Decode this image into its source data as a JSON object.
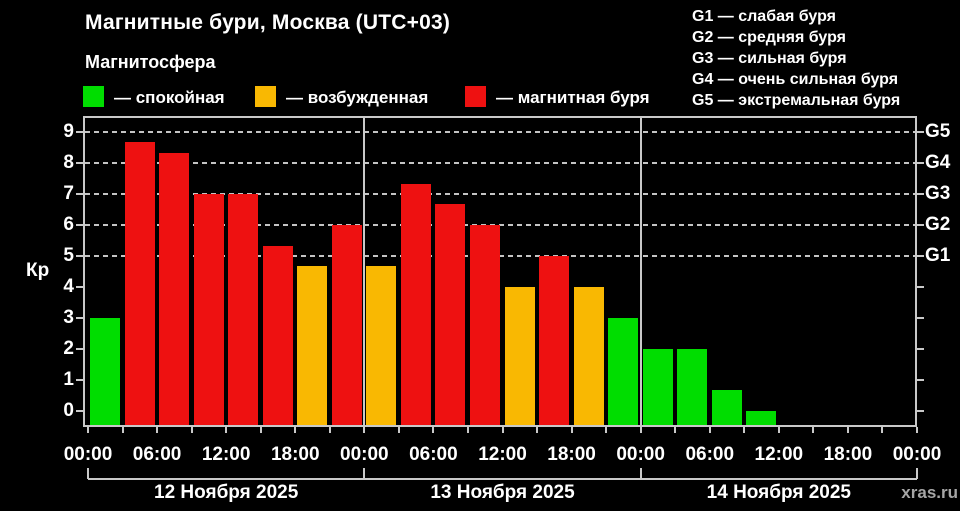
{
  "header": {
    "title": "Магнитные бури, Москва (UTC+03)",
    "subtitle": "Магнитосфера"
  },
  "legend": {
    "items": [
      {
        "key": "quiet",
        "label": "— спокойная",
        "color": "#00dd00"
      },
      {
        "key": "excited",
        "label": "— возбужденная",
        "color": "#f9b802"
      },
      {
        "key": "storm",
        "label": "— магнитная буря",
        "color": "#ee1111"
      }
    ]
  },
  "g_scale_legend": {
    "items": [
      "G1 — слабая буря",
      "G2 — средняя буря",
      "G3 — сильная буря",
      "G4 — очень сильная буря",
      "G5 — экстремальная буря"
    ]
  },
  "watermark": "xras.ru",
  "colors": {
    "quiet": "#00dd00",
    "excited": "#f9b802",
    "storm": "#ee1111",
    "axis": "#c9c9c9",
    "text": "#ffffff",
    "background": "#000000"
  },
  "chart_data": {
    "type": "bar",
    "title": "Магнитные бури, Москва (UTC+03)",
    "subtitle": "Магнитосфера",
    "ylabel": "Кр",
    "ylim": [
      -0.45,
      9.45
    ],
    "yticks": [
      0,
      1,
      2,
      3,
      4,
      5,
      6,
      7,
      8,
      9
    ],
    "gridlines_at": [
      5,
      6,
      7,
      8,
      9
    ],
    "grid": "dashed horizontal at Kp 5-9 only",
    "right_axis": {
      "labels": [
        "G1",
        "G2",
        "G3",
        "G4",
        "G5"
      ],
      "at_kp": [
        5,
        6,
        7,
        8,
        9
      ]
    },
    "x_tick_labels_per_day": [
      "00:00",
      "06:00",
      "12:00",
      "18:00"
    ],
    "x_axis_end_label": "00:00",
    "slot_hours": [
      "00:00",
      "03:00",
      "06:00",
      "09:00",
      "12:00",
      "15:00",
      "18:00",
      "21:00"
    ],
    "days": [
      {
        "date": "12 Ноября 2025",
        "kp": [
          3,
          8.67,
          8.33,
          7,
          7,
          5.33,
          4.67,
          6
        ],
        "level": [
          "quiet",
          "storm",
          "storm",
          "storm",
          "storm",
          "storm",
          "excited",
          "storm"
        ]
      },
      {
        "date": "13 Ноября 2025",
        "kp": [
          4.67,
          7.33,
          6.67,
          6,
          4,
          5,
          4,
          3
        ],
        "level": [
          "excited",
          "storm",
          "storm",
          "storm",
          "excited",
          "storm",
          "excited",
          "quiet"
        ]
      },
      {
        "date": "14 Ноября 2025",
        "kp": [
          2,
          2,
          0.67,
          0,
          null,
          null,
          null,
          null
        ],
        "level": [
          "quiet",
          "quiet",
          "quiet",
          "quiet",
          null,
          null,
          null,
          null
        ]
      }
    ]
  }
}
